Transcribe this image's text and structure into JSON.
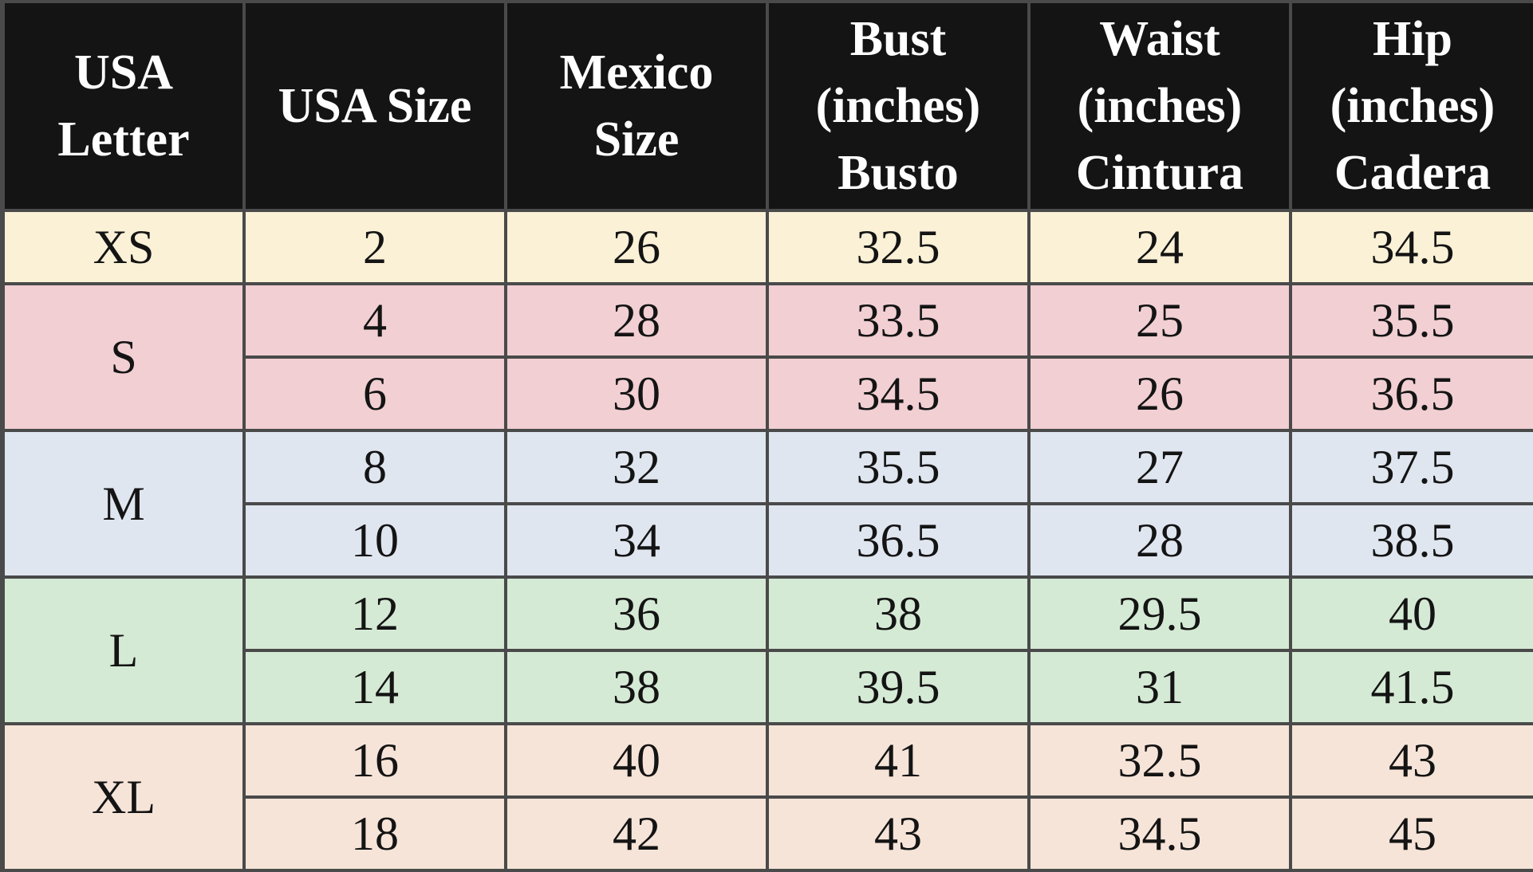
{
  "colors": {
    "header_bg": "#141414",
    "header_text": "#ffffff",
    "grid": "#4a4a4a",
    "xs": "#faf1d6",
    "s": "#f1cfd3",
    "m": "#e0e6f0",
    "l": "#d5ead5",
    "xl": "#f6e4d8"
  },
  "headers": {
    "letter": [
      "USA",
      "Letter"
    ],
    "usa_size": [
      "USA Size"
    ],
    "mexico": [
      "Mexico",
      "Size"
    ],
    "bust": [
      "Bust",
      "(inches)",
      "Busto"
    ],
    "waist": [
      "Waist",
      "(inches)",
      "Cintura"
    ],
    "hip": [
      "Hip",
      "(inches)",
      "Cadera"
    ]
  },
  "groups": [
    {
      "letter": "XS",
      "color": "xs",
      "rows": [
        {
          "usa": "2",
          "mexico": "26",
          "bust": "32.5",
          "waist": "24",
          "hip": "34.5"
        }
      ]
    },
    {
      "letter": "S",
      "color": "s",
      "rows": [
        {
          "usa": "4",
          "mexico": "28",
          "bust": "33.5",
          "waist": "25",
          "hip": "35.5"
        },
        {
          "usa": "6",
          "mexico": "30",
          "bust": "34.5",
          "waist": "26",
          "hip": "36.5"
        }
      ]
    },
    {
      "letter": "M",
      "color": "m",
      "rows": [
        {
          "usa": "8",
          "mexico": "32",
          "bust": "35.5",
          "waist": "27",
          "hip": "37.5"
        },
        {
          "usa": "10",
          "mexico": "34",
          "bust": "36.5",
          "waist": "28",
          "hip": "38.5"
        }
      ]
    },
    {
      "letter": "L",
      "color": "l",
      "rows": [
        {
          "usa": "12",
          "mexico": "36",
          "bust": "38",
          "waist": "29.5",
          "hip": "40"
        },
        {
          "usa": "14",
          "mexico": "38",
          "bust": "39.5",
          "waist": "31",
          "hip": "41.5"
        }
      ]
    },
    {
      "letter": "XL",
      "color": "xl",
      "rows": [
        {
          "usa": "16",
          "mexico": "40",
          "bust": "41",
          "waist": "32.5",
          "hip": "43"
        },
        {
          "usa": "18",
          "mexico": "42",
          "bust": "43",
          "waist": "34.5",
          "hip": "45"
        }
      ]
    }
  ]
}
